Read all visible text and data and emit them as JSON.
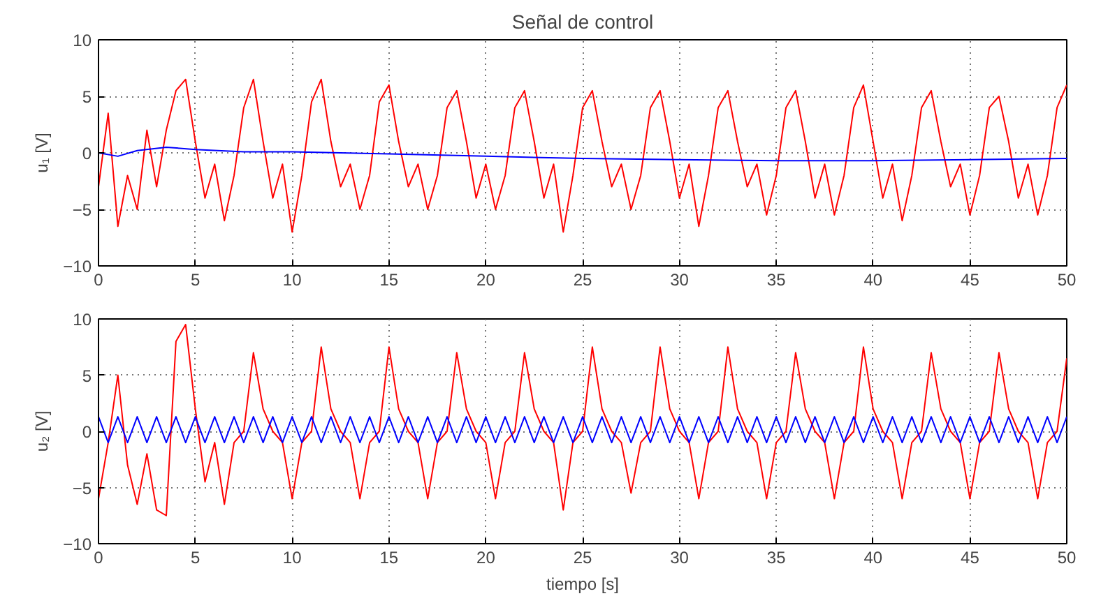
{
  "chart_data": [
    {
      "type": "line",
      "title": "Señal de control",
      "ylabel": "u₁ [V]",
      "xlim": [
        0,
        50
      ],
      "ylim": [
        -10,
        10
      ],
      "xticks": [
        0,
        5,
        10,
        15,
        20,
        25,
        30,
        35,
        40,
        45,
        50
      ],
      "yticks": [
        -10,
        -5,
        0,
        5,
        10
      ],
      "grid": true,
      "line_style": "solid",
      "series": [
        {
          "color": "#ff0000",
          "x": [
            0,
            0.5,
            1,
            1.5,
            2,
            2.5,
            3,
            3.5,
            4,
            4.5,
            5,
            5.5,
            6,
            6.5,
            7,
            7.5,
            8,
            8.5,
            9,
            9.5,
            10,
            10.5,
            11,
            11.5,
            12,
            12.5,
            13,
            13.5,
            14,
            14.5,
            15,
            15.5,
            16,
            16.5,
            17,
            17.5,
            18,
            18.5,
            19,
            19.5,
            20,
            20.5,
            21,
            21.5,
            22,
            22.5,
            23,
            23.5,
            24,
            24.5,
            25,
            25.5,
            26,
            26.5,
            27,
            27.5,
            28,
            28.5,
            29,
            29.5,
            30,
            30.5,
            31,
            31.5,
            32,
            32.5,
            33,
            33.5,
            34,
            34.5,
            35,
            35.5,
            36,
            36.5,
            37,
            37.5,
            38,
            38.5,
            39,
            39.5,
            40,
            40.5,
            41,
            41.5,
            42,
            42.5,
            43,
            43.5,
            44,
            44.5,
            45,
            45.5,
            46,
            46.5,
            47,
            47.5,
            48,
            48.5,
            49,
            49.5,
            50
          ],
          "values": [
            -3,
            3.5,
            -6.5,
            -2,
            -5,
            2,
            -3,
            2,
            5.5,
            6.5,
            1,
            -4,
            -1,
            -6,
            -2,
            4,
            6.5,
            1,
            -4,
            -1,
            -7,
            -2,
            4.5,
            6.5,
            1,
            -3,
            -1,
            -5,
            -2,
            4.5,
            6,
            1,
            -3,
            -1,
            -5,
            -2,
            4,
            5.5,
            1,
            -4,
            -1,
            -5,
            -2,
            4,
            5.5,
            1,
            -4,
            -1,
            -7,
            -2,
            4,
            5.5,
            1,
            -3,
            -1,
            -5,
            -2,
            4,
            5.5,
            1,
            -4,
            -1,
            -6.5,
            -2,
            4,
            5.5,
            1,
            -3,
            -1,
            -5.5,
            -2,
            4,
            5.5,
            1,
            -4,
            -1,
            -5.5,
            -2,
            4,
            6,
            1,
            -4,
            -1,
            -6,
            -2,
            4,
            5.5,
            1,
            -3,
            -1,
            -5.5,
            -2,
            4,
            5,
            1,
            -4,
            -1,
            -5.5,
            -2,
            4,
            6
          ]
        },
        {
          "color": "#0000ff",
          "x": [
            0,
            1,
            2,
            3.5,
            5,
            7.5,
            10,
            15,
            20,
            25,
            30,
            35,
            40,
            45,
            50
          ],
          "values": [
            0,
            -0.3,
            0.2,
            0.5,
            0.3,
            0.1,
            0.1,
            -0.1,
            -0.3,
            -0.5,
            -0.6,
            -0.7,
            -0.7,
            -0.6,
            -0.5
          ]
        }
      ]
    },
    {
      "type": "line",
      "xlabel": "tiempo [s]",
      "ylabel": "u₂ [V]",
      "xlim": [
        0,
        50
      ],
      "ylim": [
        -10,
        10
      ],
      "xticks": [
        0,
        5,
        10,
        15,
        20,
        25,
        30,
        35,
        40,
        45,
        50
      ],
      "yticks": [
        -10,
        -5,
        0,
        5,
        10
      ],
      "grid": true,
      "line_style": "solid",
      "series": [
        {
          "color": "#ff0000",
          "x": [
            0,
            0.5,
            1,
            1.5,
            2,
            2.5,
            3,
            3.5,
            4,
            4.5,
            5,
            5.5,
            6,
            6.5,
            7,
            7.5,
            8,
            8.5,
            9,
            9.5,
            10,
            10.5,
            11,
            11.5,
            12,
            12.5,
            13,
            13.5,
            14,
            14.5,
            15,
            15.5,
            16,
            16.5,
            17,
            17.5,
            18,
            18.5,
            19,
            19.5,
            20,
            20.5,
            21,
            21.5,
            22,
            22.5,
            23,
            23.5,
            24,
            24.5,
            25,
            25.5,
            26,
            26.5,
            27,
            27.5,
            28,
            28.5,
            29,
            29.5,
            30,
            30.5,
            31,
            31.5,
            32,
            32.5,
            33,
            33.5,
            34,
            34.5,
            35,
            35.5,
            36,
            36.5,
            37,
            37.5,
            38,
            38.5,
            39,
            39.5,
            40,
            40.5,
            41,
            41.5,
            42,
            42.5,
            43,
            43.5,
            44,
            44.5,
            45,
            45.5,
            46,
            46.5,
            47,
            47.5,
            48,
            48.5,
            49,
            49.5,
            50
          ],
          "values": [
            -6,
            -1,
            5,
            -3,
            -6.5,
            -2,
            -7,
            -7.5,
            8,
            9.5,
            2,
            -4.5,
            -1,
            -6.5,
            -1,
            0,
            7,
            2,
            0,
            -1,
            -6,
            -1,
            0,
            7.5,
            2,
            0,
            -1,
            -6,
            -1,
            0,
            7.5,
            2,
            0,
            -1,
            -6,
            -1,
            0,
            7,
            2,
            0,
            -1,
            -6,
            -1,
            0,
            7,
            2,
            0,
            -1,
            -7,
            -1,
            0,
            7.5,
            2,
            0,
            -1,
            -5.5,
            -1,
            0,
            7.5,
            2,
            0,
            -1,
            -6,
            -1,
            0,
            7.5,
            2,
            0,
            -1,
            -6,
            -1,
            0,
            7,
            2,
            0,
            -1,
            -6,
            -1,
            0,
            7.5,
            2,
            0,
            -1,
            -6,
            -1,
            0,
            7,
            2,
            0,
            -1,
            -6,
            -1,
            0,
            7,
            2,
            0,
            -1,
            -6,
            -1,
            0,
            6.5
          ]
        },
        {
          "color": "#0000ff",
          "x": [
            0,
            0.5,
            1,
            1.5,
            2,
            2.5,
            3,
            3.5,
            4,
            4.5,
            5,
            5.5,
            6,
            6.5,
            7,
            7.5,
            8,
            8.5,
            9,
            9.5,
            10,
            10.5,
            11,
            11.5,
            12,
            12.5,
            13,
            13.5,
            14,
            14.5,
            15,
            15.5,
            16,
            16.5,
            17,
            17.5,
            18,
            18.5,
            19,
            19.5,
            20,
            20.5,
            21,
            21.5,
            22,
            22.5,
            23,
            23.5,
            24,
            24.5,
            25,
            25.5,
            26,
            26.5,
            27,
            27.5,
            28,
            28.5,
            29,
            29.5,
            30,
            30.5,
            31,
            31.5,
            32,
            32.5,
            33,
            33.5,
            34,
            34.5,
            35,
            35.5,
            36,
            36.5,
            37,
            37.5,
            38,
            38.5,
            39,
            39.5,
            40,
            40.5,
            41,
            41.5,
            42,
            42.5,
            43,
            43.5,
            44,
            44.5,
            45,
            45.5,
            46,
            46.5,
            47,
            47.5,
            48,
            48.5,
            49,
            49.5,
            50
          ],
          "values": [
            1.3,
            -1,
            1.3,
            -1,
            1.3,
            -1,
            1.3,
            -1,
            1.3,
            -1,
            1.3,
            -1,
            1.3,
            -1,
            1.3,
            -1,
            1.3,
            -1,
            1.3,
            -1,
            1.3,
            -1,
            1.3,
            -1,
            1.3,
            -1,
            1.3,
            -1,
            1.3,
            -1,
            1.3,
            -1,
            1.3,
            -1,
            1.3,
            -1,
            1.3,
            -1,
            1.3,
            -1,
            1.3,
            -1,
            1.3,
            -1,
            1.3,
            -1,
            1.3,
            -1,
            1.3,
            -1,
            1.3,
            -1,
            1.3,
            -1,
            1.3,
            -1,
            1.3,
            -1,
            1.3,
            -1,
            1.3,
            -1,
            1.3,
            -1,
            1.3,
            -1,
            1.3,
            -1,
            1.3,
            -1,
            1.3,
            -1,
            1.3,
            -1,
            1.3,
            -1,
            1.3,
            -1,
            1.3,
            -1,
            1.3,
            -1,
            1.3,
            -1,
            1.3,
            -1,
            1.3,
            -1,
            1.3,
            -1,
            1.3,
            -1,
            1.3,
            -1,
            1.3,
            -1,
            1.3,
            -1,
            1.3,
            -1,
            1.3
          ]
        }
      ]
    }
  ]
}
